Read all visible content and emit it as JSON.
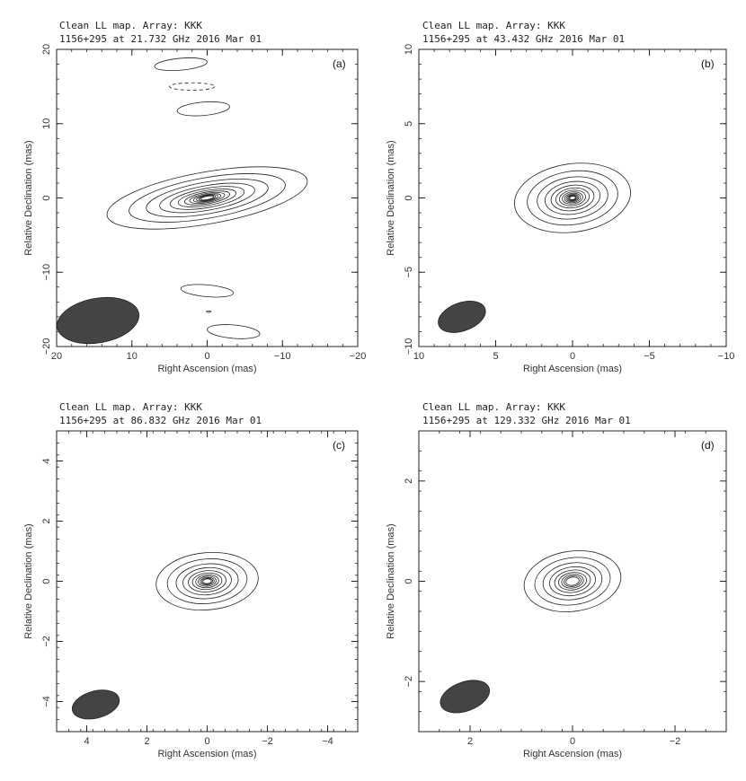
{
  "chart_data": [
    {
      "type": "contour",
      "panel_label": "(a)",
      "header_line1": "Clean LL map.  Array:  KKK",
      "header_line2": "1156+295 at 21.732 GHz 2016 Mar 01",
      "xlabel": "Right Ascension  (mas)",
      "ylabel": "Relative Declination  (mas)",
      "xlim": [
        20,
        -20
      ],
      "ylim": [
        -20,
        20
      ],
      "xticks": [
        20,
        10,
        0,
        -10,
        -20
      ],
      "yticks": [
        20,
        10,
        0,
        -10,
        -20
      ],
      "core": {
        "x": 0,
        "y": 0,
        "rx": 13.5,
        "ry": 3.5,
        "angle": -10,
        "levels": 12
      },
      "components": [
        {
          "x": 3.5,
          "y": 18,
          "rx": 3.5,
          "ry": 0.8,
          "angle": -5,
          "dashed": false
        },
        {
          "x": 2.0,
          "y": 15,
          "rx": 3.0,
          "ry": 0.5,
          "angle": 0,
          "dashed": true
        },
        {
          "x": 0.5,
          "y": 12,
          "rx": 3.5,
          "ry": 0.9,
          "angle": -5,
          "dashed": false
        },
        {
          "x": 0.0,
          "y": -12.5,
          "rx": 3.5,
          "ry": 0.8,
          "angle": 5,
          "dashed": false
        },
        {
          "x": -0.2,
          "y": -15.3,
          "rx": 0.3,
          "ry": 0.1,
          "angle": 0,
          "dashed": false
        },
        {
          "x": -3.5,
          "y": -18,
          "rx": 3.5,
          "ry": 0.9,
          "angle": 5,
          "dashed": false
        }
      ],
      "beam": {
        "x": 14.5,
        "y": -16.5,
        "rx": 5.5,
        "ry": 3.0,
        "angle": -10
      }
    },
    {
      "type": "contour",
      "panel_label": "(b)",
      "header_line1": "Clean LL map.  Array:  KKK",
      "header_line2": "1156+295 at 43.432 GHz 2016 Mar 01",
      "xlabel": "Right Ascension  (mas)",
      "ylabel": "Relative Declination  (mas)",
      "xlim": [
        10,
        -10
      ],
      "ylim": [
        -10,
        10
      ],
      "xticks": [
        10,
        5,
        0,
        -5,
        -10
      ],
      "yticks": [
        10,
        5,
        0,
        -5,
        -10
      ],
      "core": {
        "x": 0,
        "y": 0,
        "rx": 3.8,
        "ry": 2.3,
        "angle": -8,
        "levels": 13
      },
      "components": [],
      "beam": {
        "x": 7.2,
        "y": -8.0,
        "rx": 1.6,
        "ry": 0.95,
        "angle": -20
      }
    },
    {
      "type": "contour",
      "panel_label": "(c)",
      "header_line1": "Clean LL map.  Array:  KKK",
      "header_line2": "1156+295 at 86.832 GHz 2016 Mar 01",
      "xlabel": "Right Ascension  (mas)",
      "ylabel": "Relative Declination  (mas)",
      "xlim": [
        5,
        -5
      ],
      "ylim": [
        -5,
        5
      ],
      "xticks": [
        4,
        2,
        0,
        -2,
        -4
      ],
      "yticks": [
        4,
        2,
        0,
        -2,
        -4
      ],
      "core": {
        "x": 0,
        "y": 0,
        "rx": 1.7,
        "ry": 0.95,
        "angle": -5,
        "levels": 11
      },
      "components": [],
      "beam": {
        "x": 3.7,
        "y": -4.1,
        "rx": 0.8,
        "ry": 0.45,
        "angle": -15
      }
    },
    {
      "type": "contour",
      "panel_label": "(d)",
      "header_line1": "Clean LL map.  Array:  KKK",
      "header_line2": "1156+295 at 129.332 GHz 2016 Mar 01",
      "xlabel": "Right Ascension  (mas)",
      "ylabel": "Relative Declination  (mas)",
      "xlim": [
        3,
        -3
      ],
      "ylim": [
        -3,
        3
      ],
      "xticks": [
        2,
        0,
        -2
      ],
      "yticks": [
        2,
        0,
        -2
      ],
      "core": {
        "x": 0,
        "y": 0,
        "rx": 0.95,
        "ry": 0.6,
        "angle": -8,
        "levels": 9
      },
      "components": [],
      "beam": {
        "x": 2.1,
        "y": -2.3,
        "rx": 0.5,
        "ry": 0.29,
        "angle": -20
      }
    }
  ]
}
